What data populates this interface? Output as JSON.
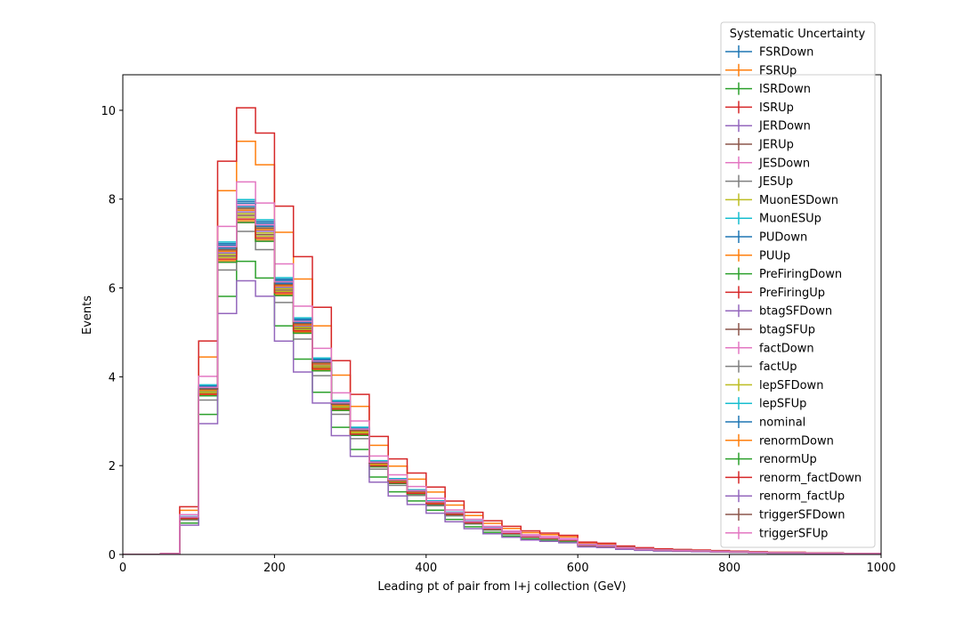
{
  "chart_data": {
    "type": "line",
    "xlabel": "Leading pt of pair from l+j collection (GeV)",
    "ylabel": "Events",
    "xlim": [
      0,
      1000
    ],
    "ylim": [
      0,
      10.8
    ],
    "xticks": [
      0,
      200,
      400,
      600,
      800,
      1000
    ],
    "yticks": [
      0,
      2,
      4,
      6,
      8,
      10
    ],
    "grid": false,
    "legend_placement": "upper-right",
    "legend_title": "Systematic Uncertainty",
    "bin_edges": [
      0,
      25,
      50,
      75,
      100,
      125,
      150,
      175,
      200,
      225,
      250,
      275,
      300,
      325,
      350,
      375,
      400,
      425,
      450,
      475,
      500,
      525,
      550,
      575,
      600,
      625,
      650,
      675,
      700,
      725,
      750,
      775,
      800,
      825,
      850,
      875,
      900,
      925,
      950,
      975,
      1000
    ],
    "series": [
      {
        "name": "FSRDown",
        "color": "#1f77b4",
        "scale": 1.0
      },
      {
        "name": "FSRUp",
        "color": "#ff7f0e",
        "scale": 1.17
      },
      {
        "name": "ISRDown",
        "color": "#2ca02c",
        "scale": 0.83
      },
      {
        "name": "ISRUp",
        "color": "#d62728",
        "scale": 0.94
      },
      {
        "name": "JERDown",
        "color": "#9467bd",
        "scale": 0.97
      },
      {
        "name": "JERUp",
        "color": "#8c564b",
        "scale": 0.96
      },
      {
        "name": "JESDown",
        "color": "#e377c2",
        "scale": 0.99
      },
      {
        "name": "JESUp",
        "color": "#7f7f7f",
        "scale": 0.915
      },
      {
        "name": "MuonESDown",
        "color": "#bcbd22",
        "scale": 0.955
      },
      {
        "name": "MuonESUp",
        "color": "#17becf",
        "scale": 1.005
      },
      {
        "name": "PUDown",
        "color": "#1f77b4",
        "scale": 0.995
      },
      {
        "name": "PUUp",
        "color": "#ff7f0e",
        "scale": 0.945
      },
      {
        "name": "PreFiringDown",
        "color": "#2ca02c",
        "scale": 0.94
      },
      {
        "name": "PreFiringUp",
        "color": "#d62728",
        "scale": 1.265
      },
      {
        "name": "btagSFDown",
        "color": "#9467bd",
        "scale": 0.985
      },
      {
        "name": "btagSFUp",
        "color": "#8c564b",
        "scale": 0.975
      },
      {
        "name": "factDown",
        "color": "#e377c2",
        "scale": 1.055
      },
      {
        "name": "factUp",
        "color": "#7f7f7f",
        "scale": 0.965
      },
      {
        "name": "lepSFDown",
        "color": "#bcbd22",
        "scale": 0.965
      },
      {
        "name": "lepSFUp",
        "color": "#17becf",
        "scale": 0.99
      },
      {
        "name": "nominal",
        "color": "#1f77b4",
        "scale": 0.985
      },
      {
        "name": "renormDown",
        "color": "#ff7f0e",
        "scale": 0.975
      },
      {
        "name": "renormUp",
        "color": "#2ca02c",
        "scale": 0.98
      },
      {
        "name": "renorm_factDown",
        "color": "#d62728",
        "scale": 0.95
      },
      {
        "name": "renorm_factUp",
        "color": "#9467bd",
        "scale": 0.775
      },
      {
        "name": "triggerSFDown",
        "color": "#8c564b",
        "scale": 0.98
      },
      {
        "name": "triggerSFUp",
        "color": "#e377c2",
        "scale": 0.99
      }
    ],
    "base_values": [
      0.0,
      0.0,
      0.02,
      0.85,
      3.8,
      7.0,
      7.95,
      7.5,
      6.2,
      5.3,
      4.4,
      3.45,
      2.85,
      2.1,
      1.7,
      1.45,
      1.2,
      0.95,
      0.75,
      0.6,
      0.5,
      0.42,
      0.38,
      0.34,
      0.22,
      0.2,
      0.15,
      0.12,
      0.1,
      0.09,
      0.08,
      0.07,
      0.06,
      0.05,
      0.04,
      0.04,
      0.03,
      0.03,
      0.02,
      0.02
    ]
  }
}
